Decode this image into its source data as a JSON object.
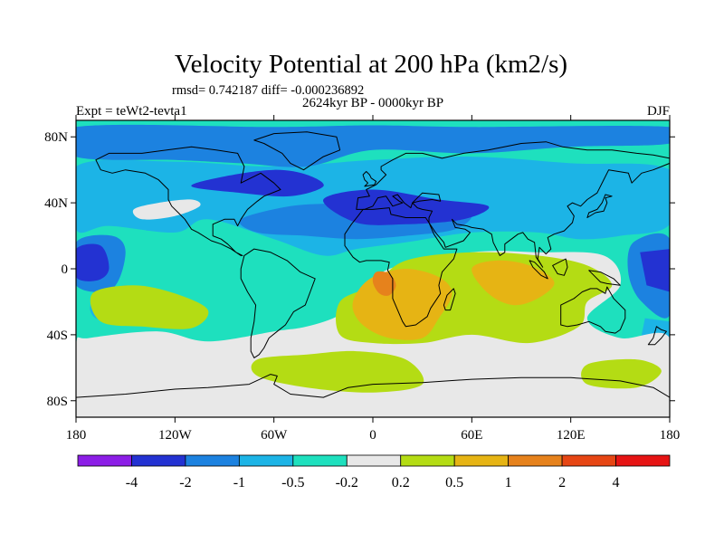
{
  "title": "Velocity Potential at 200 hPa (km2/s)",
  "stats_line": "rmsd= 0.742187 diff= -0.000236892",
  "left_label": "Expt = teWt2-tevta1",
  "center_label": "2624kyr BP - 0000kyr BP",
  "right_label": "DJF",
  "lat_ticks": [
    {
      "lat": 80,
      "label": "80N"
    },
    {
      "lat": 40,
      "label": "40N"
    },
    {
      "lat": 0,
      "label": "0"
    },
    {
      "lat": -40,
      "label": "40S"
    },
    {
      "lat": -80,
      "label": "80S"
    }
  ],
  "lon_ticks": [
    {
      "lon": -180,
      "label": "180"
    },
    {
      "lon": -120,
      "label": "120W"
    },
    {
      "lon": -60,
      "label": "60W"
    },
    {
      "lon": 0,
      "label": "0"
    },
    {
      "lon": 60,
      "label": "60E"
    },
    {
      "lon": 120,
      "label": "120E"
    },
    {
      "lon": 180,
      "label": "180"
    }
  ],
  "colorbar": {
    "colors": [
      "#8c1ee6",
      "#2332d2",
      "#1c82e0",
      "#1cb4e6",
      "#1ee0be",
      "#e8e8e8",
      "#b4dc14",
      "#e6b414",
      "#e6821c",
      "#e64614",
      "#e61414"
    ],
    "labels": [
      "-4",
      "-2",
      "-1",
      "-0.5",
      "-0.2",
      "0.2",
      "0.5",
      "1",
      "2",
      "4"
    ]
  },
  "field_regions": [
    {
      "level": 4,
      "polys": [
        [
          [
            -180,
            90
          ],
          [
            180,
            90
          ],
          [
            180,
            -90
          ],
          [
            -180,
            -90
          ]
        ]
      ]
    },
    {
      "level": 3,
      "polys": [
        [
          [
            -180,
            62
          ],
          [
            -120,
            65
          ],
          [
            -60,
            62
          ],
          [
            0,
            66
          ],
          [
            60,
            68
          ],
          [
            120,
            64
          ],
          [
            180,
            60
          ],
          [
            180,
            27
          ],
          [
            150,
            20
          ],
          [
            125,
            18
          ],
          [
            100,
            22
          ],
          [
            60,
            22
          ],
          [
            20,
            16
          ],
          [
            -10,
            12
          ],
          [
            -30,
            8
          ],
          [
            -60,
            18
          ],
          [
            -100,
            30
          ],
          [
            -120,
            22
          ],
          [
            -160,
            26
          ],
          [
            -180,
            24
          ]
        ],
        [
          [
            -170,
            -20
          ],
          [
            -150,
            -10
          ],
          [
            -140,
            -20
          ],
          [
            -150,
            -32
          ],
          [
            -168,
            -30
          ]
        ],
        [
          [
            165,
            -30
          ],
          [
            180,
            -32
          ],
          [
            180,
            -48
          ],
          [
            162,
            -45
          ]
        ]
      ]
    },
    {
      "level": 2,
      "polys": [
        [
          [
            -180,
            86
          ],
          [
            -60,
            86
          ],
          [
            0,
            87
          ],
          [
            60,
            86
          ],
          [
            180,
            86
          ],
          [
            180,
            76
          ],
          [
            120,
            74
          ],
          [
            60,
            70
          ],
          [
            0,
            72
          ],
          [
            -40,
            62
          ],
          [
            -80,
            64
          ],
          [
            -120,
            66
          ],
          [
            -180,
            68
          ]
        ],
        [
          [
            -80,
            30
          ],
          [
            -50,
            38
          ],
          [
            -20,
            40
          ],
          [
            10,
            44
          ],
          [
            40,
            40
          ],
          [
            60,
            34
          ],
          [
            50,
            24
          ],
          [
            20,
            20
          ],
          [
            -10,
            18
          ],
          [
            -40,
            20
          ],
          [
            -70,
            22
          ]
        ],
        [
          [
            -180,
            16
          ],
          [
            -158,
            20
          ],
          [
            -150,
            10
          ],
          [
            -158,
            -12
          ],
          [
            -180,
            -10
          ]
        ],
        [
          [
            158,
            16
          ],
          [
            180,
            18
          ],
          [
            180,
            -28
          ],
          [
            163,
            -20
          ],
          [
            155,
            -3
          ]
        ]
      ]
    },
    {
      "level": 1,
      "polys": [
        [
          [
            -110,
            50
          ],
          [
            -90,
            56
          ],
          [
            -60,
            60
          ],
          [
            -40,
            57
          ],
          [
            -30,
            50
          ],
          [
            -50,
            44
          ],
          [
            -80,
            46
          ]
        ],
        [
          [
            -30,
            42
          ],
          [
            0,
            48
          ],
          [
            40,
            42
          ],
          [
            70,
            38
          ],
          [
            55,
            30
          ],
          [
            20,
            27
          ],
          [
            -10,
            28
          ]
        ],
        [
          [
            -180,
            12
          ],
          [
            -165,
            14
          ],
          [
            -160,
            0
          ],
          [
            -167,
            -7
          ],
          [
            -180,
            -5
          ]
        ],
        [
          [
            162,
            10
          ],
          [
            180,
            12
          ],
          [
            180,
            -14
          ],
          [
            166,
            -10
          ]
        ]
      ]
    },
    {
      "level": 5,
      "polys": [
        [
          [
            -172,
            -42
          ],
          [
            -130,
            -38
          ],
          [
            -100,
            -44
          ],
          [
            -60,
            -38
          ],
          [
            -40,
            -35
          ],
          [
            -20,
            -28
          ],
          [
            -5,
            -15
          ],
          [
            10,
            0
          ],
          [
            60,
            10
          ],
          [
            100,
            10
          ],
          [
            140,
            8
          ],
          [
            150,
            -10
          ],
          [
            130,
            -30
          ],
          [
            150,
            -42
          ],
          [
            180,
            -42
          ],
          [
            180,
            -90
          ],
          [
            -180,
            -90
          ],
          [
            -180,
            -46
          ]
        ],
        [
          [
            -140,
            30
          ],
          [
            -120,
            32
          ],
          [
            -105,
            38
          ],
          [
            -110,
            42
          ],
          [
            -130,
            40
          ],
          [
            -145,
            36
          ]
        ]
      ]
    },
    {
      "level": 6,
      "polys": [
        [
          [
            -170,
            -15
          ],
          [
            -145,
            -10
          ],
          [
            -120,
            -15
          ],
          [
            -100,
            -25
          ],
          [
            -110,
            -36
          ],
          [
            -140,
            -35
          ],
          [
            -165,
            -32
          ]
        ],
        [
          [
            -20,
            -20
          ],
          [
            0,
            -10
          ],
          [
            20,
            5
          ],
          [
            60,
            10
          ],
          [
            100,
            8
          ],
          [
            130,
            2
          ],
          [
            145,
            -10
          ],
          [
            130,
            -20
          ],
          [
            125,
            -35
          ],
          [
            95,
            -45
          ],
          [
            60,
            -40
          ],
          [
            30,
            -45
          ],
          [
            0,
            -45
          ],
          [
            -20,
            -40
          ]
        ],
        [
          [
            -70,
            -55
          ],
          [
            -40,
            -52
          ],
          [
            -10,
            -50
          ],
          [
            20,
            -55
          ],
          [
            30,
            -70
          ],
          [
            0,
            -75
          ],
          [
            -40,
            -72
          ],
          [
            -70,
            -65
          ]
        ],
        [
          [
            130,
            -58
          ],
          [
            160,
            -55
          ],
          [
            175,
            -62
          ],
          [
            160,
            -72
          ],
          [
            130,
            -70
          ]
        ]
      ]
    },
    {
      "level": 7,
      "polys": [
        [
          [
            -10,
            -15
          ],
          [
            0,
            -5
          ],
          [
            20,
            0
          ],
          [
            40,
            -5
          ],
          [
            48,
            -15
          ],
          [
            40,
            -30
          ],
          [
            30,
            -42
          ],
          [
            10,
            -42
          ],
          [
            -5,
            -35
          ],
          [
            -12,
            -25
          ]
        ],
        [
          [
            60,
            0
          ],
          [
            75,
            5
          ],
          [
            95,
            2
          ],
          [
            110,
            -8
          ],
          [
            100,
            -18
          ],
          [
            85,
            -22
          ],
          [
            70,
            -15
          ]
        ]
      ]
    },
    {
      "level": 8,
      "polys": [
        [
          [
            2,
            -2
          ],
          [
            10,
            -3
          ],
          [
            14,
            -10
          ],
          [
            10,
            -16
          ],
          [
            4,
            -15
          ],
          [
            0,
            -8
          ]
        ]
      ]
    }
  ]
}
